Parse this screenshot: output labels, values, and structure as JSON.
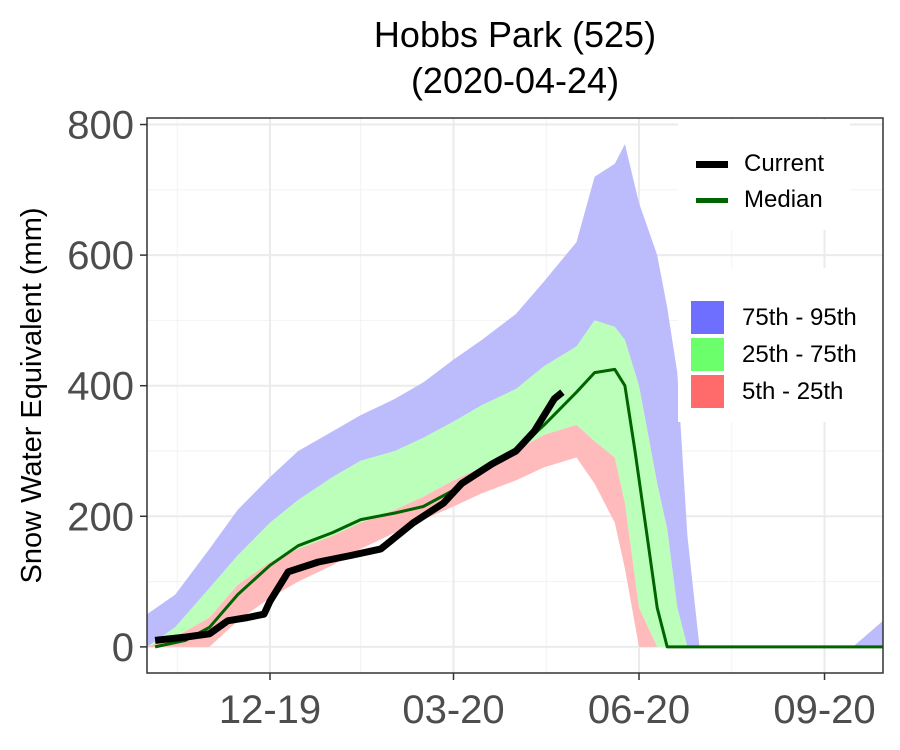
{
  "chart_data": {
    "type": "line",
    "title": "Hobbs Park (525)",
    "subtitle": "(2020-04-24)",
    "xlabel": "",
    "ylabel": "Snow Water Equivalent (mm)",
    "ylim": [
      -40,
      810
    ],
    "xlim": [
      "2019-10-01",
      "2020-09-30"
    ],
    "yticks": [
      0,
      200,
      400,
      600,
      800
    ],
    "ytick_labels": [
      "0",
      "200",
      "400",
      "600",
      "800"
    ],
    "xticks": [
      "2019-12-01",
      "2020-03-01",
      "2020-06-01",
      "2020-09-01"
    ],
    "xtick_labels": [
      "12-19",
      "03-20",
      "06-20",
      "09-20"
    ],
    "grid": true,
    "legend": {
      "placement": "right",
      "lines": [
        {
          "label": "Current",
          "color": "#000000"
        },
        {
          "label": "Median",
          "color": "#006400"
        }
      ],
      "bands": [
        {
          "label": "75th - 95th",
          "color": "#6e6eff"
        },
        {
          "label": "25th - 75th",
          "color": "#6bff6b"
        },
        {
          "label": "5th - 25th",
          "color": "#ff6b6b"
        }
      ]
    },
    "bands": {
      "x": [
        "2019-10-01",
        "2019-10-15",
        "2019-11-01",
        "2019-11-15",
        "2019-12-01",
        "2019-12-15",
        "2020-01-01",
        "2020-01-15",
        "2020-02-01",
        "2020-02-15",
        "2020-03-01",
        "2020-03-15",
        "2020-04-01",
        "2020-04-15",
        "2020-05-01",
        "2020-05-10",
        "2020-05-20",
        "2020-05-25",
        "2020-06-01",
        "2020-06-10",
        "2020-06-15",
        "2020-06-20",
        "2020-06-25",
        "2020-07-01",
        "2020-07-15",
        "2020-08-01",
        "2020-08-15",
        "2020-09-01",
        "2020-09-15",
        "2020-09-30"
      ],
      "p5": [
        0,
        0,
        0,
        40,
        75,
        100,
        125,
        150,
        175,
        195,
        215,
        235,
        255,
        275,
        290,
        250,
        190,
        120,
        0,
        0,
        0,
        0,
        0,
        0,
        0,
        0,
        0,
        0,
        0,
        0
      ],
      "p25": [
        0,
        15,
        45,
        95,
        130,
        150,
        170,
        190,
        210,
        230,
        255,
        275,
        300,
        325,
        340,
        315,
        290,
        220,
        60,
        0,
        0,
        0,
        0,
        0,
        0,
        0,
        0,
        0,
        0,
        0
      ],
      "p75": [
        0,
        30,
        90,
        140,
        190,
        225,
        260,
        285,
        300,
        320,
        345,
        370,
        395,
        430,
        460,
        500,
        490,
        470,
        400,
        250,
        180,
        60,
        0,
        0,
        0,
        0,
        0,
        0,
        0,
        0
      ],
      "p95": [
        50,
        80,
        150,
        210,
        260,
        300,
        330,
        355,
        380,
        405,
        440,
        470,
        510,
        560,
        620,
        720,
        740,
        770,
        680,
        600,
        520,
        420,
        170,
        0,
        0,
        0,
        0,
        0,
        0,
        40
      ]
    },
    "series": [
      {
        "name": "Current",
        "x": [
          "2019-10-05",
          "2019-10-20",
          "2019-11-01",
          "2019-11-10",
          "2019-11-20",
          "2019-11-28",
          "2019-12-01",
          "2019-12-10",
          "2019-12-25",
          "2020-01-10",
          "2020-01-25",
          "2020-02-10",
          "2020-02-25",
          "2020-03-05",
          "2020-03-20",
          "2020-04-01",
          "2020-04-10",
          "2020-04-20",
          "2020-04-24"
        ],
        "values": [
          10,
          15,
          20,
          40,
          45,
          50,
          70,
          115,
          130,
          140,
          150,
          190,
          220,
          250,
          280,
          300,
          330,
          380,
          390
        ]
      },
      {
        "name": "Median",
        "x": [
          "2019-10-05",
          "2019-10-20",
          "2019-11-01",
          "2019-11-15",
          "2019-12-01",
          "2019-12-15",
          "2020-01-01",
          "2020-01-15",
          "2020-02-01",
          "2020-02-15",
          "2020-03-01",
          "2020-03-15",
          "2020-04-01",
          "2020-04-15",
          "2020-05-01",
          "2020-05-10",
          "2020-05-20",
          "2020-05-25",
          "2020-05-30",
          "2020-06-05",
          "2020-06-10",
          "2020-06-15",
          "2020-07-01",
          "2020-08-01",
          "2020-09-01",
          "2020-09-30"
        ],
        "values": [
          0,
          10,
          30,
          80,
          125,
          155,
          175,
          195,
          205,
          215,
          240,
          270,
          300,
          340,
          390,
          420,
          425,
          400,
          300,
          170,
          60,
          0,
          0,
          0,
          0,
          0
        ]
      }
    ]
  }
}
